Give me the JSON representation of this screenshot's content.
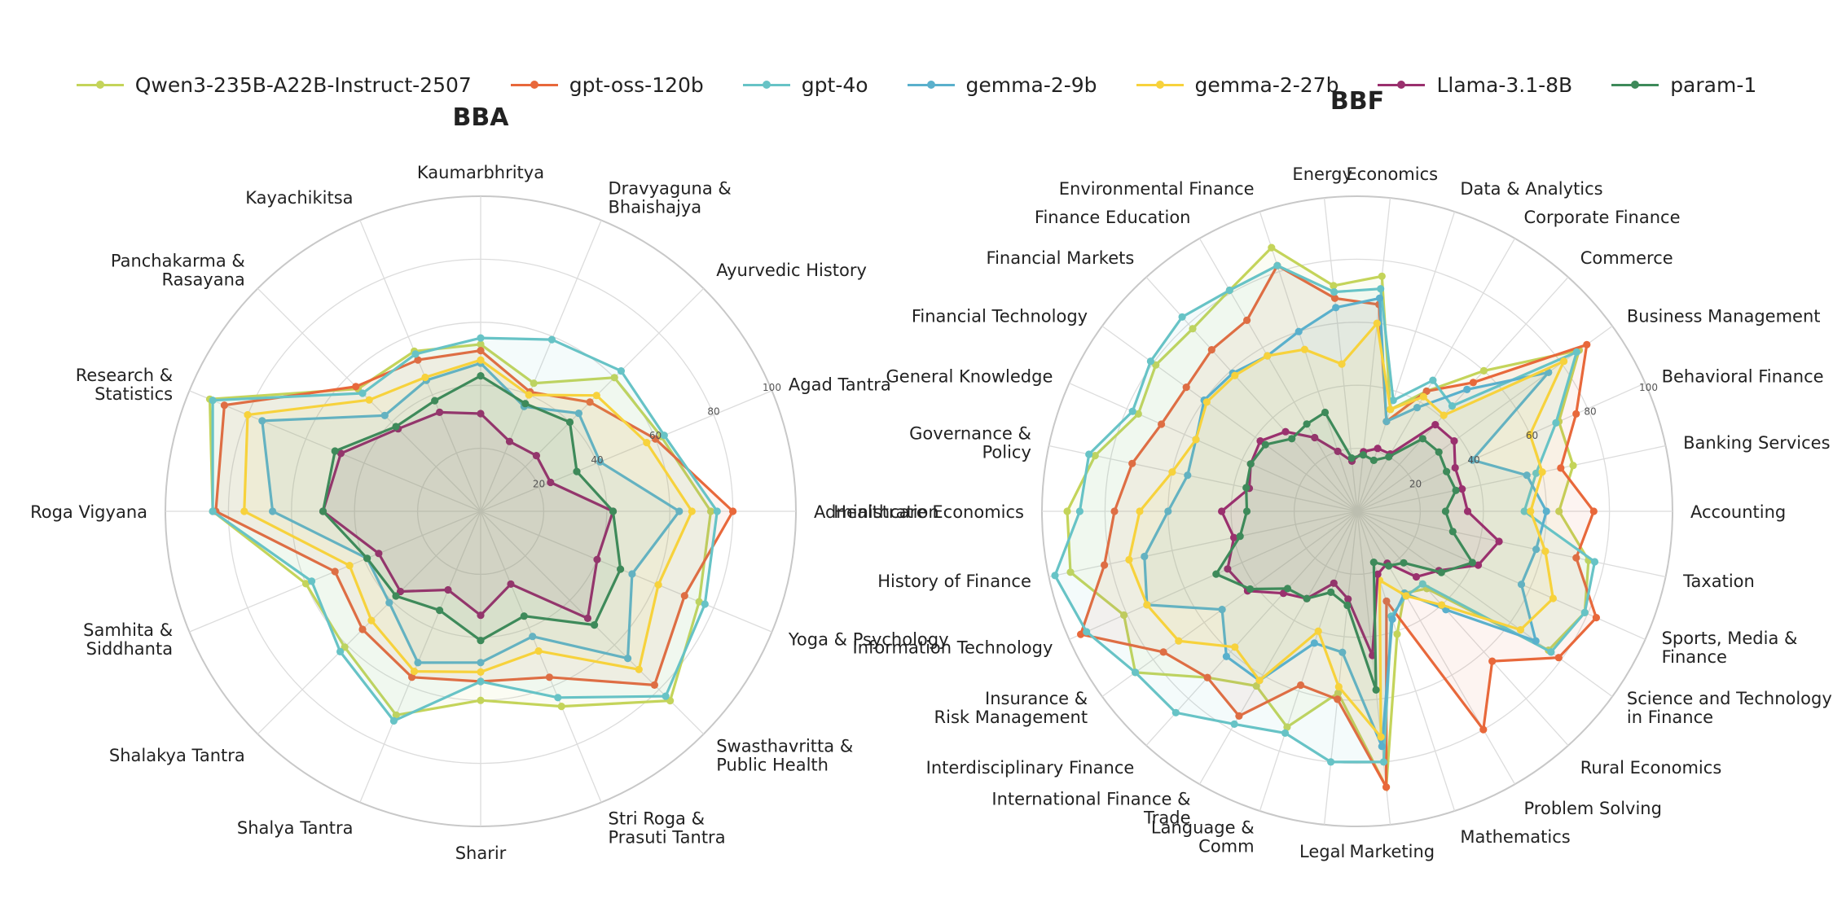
{
  "legend": [
    {
      "name": "Qwen3-235B-A22B-Instruct-2507",
      "color": "#c4d45a"
    },
    {
      "name": "gpt-oss-120b",
      "color": "#e8683b"
    },
    {
      "name": "gpt-4o",
      "color": "#67c3c6"
    },
    {
      "name": "gemma-2-9b",
      "color": "#5ab0cc"
    },
    {
      "name": "gemma-2-27b",
      "color": "#f7d23c"
    },
    {
      "name": "Llama-3.1-8B",
      "color": "#9a306e"
    },
    {
      "name": "param-1",
      "color": "#3e8a5a"
    }
  ],
  "radial_ticks": [
    "20",
    "40",
    "60",
    "80",
    "100"
  ],
  "chart_data": [
    {
      "type": "radar",
      "title": "BBA",
      "rlim": [
        0,
        100
      ],
      "categories": [
        "Administration",
        "Agad Tantra",
        "Ayurvedic History",
        "Dravyaguna & Bhaishajya",
        "Kaumarbhritya",
        "Kayachikitsa",
        "Panchakarma & Rasayana",
        "Research & Statistics",
        "Roga Vigyana",
        "Samhita & Siddhanta",
        "Shalakya Tantra",
        "Shalya Tantra",
        "Sharir",
        "Stri Roga & Prasuti Tantra",
        "Swasthavritta & Public Health",
        "Yoga & Psychology"
      ],
      "series": [
        {
          "name": "Qwen3-235B-A22B-Instruct-2507",
          "values": [
            73,
            62,
            60,
            44,
            53,
            55,
            55,
            93,
            85,
            60,
            61,
            70,
            60,
            67,
            85,
            75
          ]
        },
        {
          "name": "gpt-oss-120b",
          "values": [
            80,
            60,
            49,
            41,
            51,
            52,
            56,
            88,
            84,
            50,
            53,
            57,
            54,
            57,
            78,
            70
          ]
        },
        {
          "name": "gpt-4o",
          "values": [
            75,
            63,
            63,
            59,
            55,
            54,
            53,
            92,
            85,
            58,
            63,
            72,
            54,
            64,
            83,
            77
          ]
        },
        {
          "name": "gemma-2-9b",
          "values": [
            63,
            41,
            44,
            36,
            47,
            45,
            43,
            75,
            66,
            39,
            41,
            52,
            48,
            43,
            66,
            52
          ]
        },
        {
          "name": "gemma-2-27b",
          "values": [
            67,
            57,
            52,
            40,
            48,
            46,
            50,
            80,
            75,
            45,
            49,
            55,
            51,
            48,
            71,
            61
          ]
        },
        {
          "name": "Llama-3.1-8B",
          "values": [
            42,
            24,
            25,
            24,
            31,
            34,
            37,
            48,
            50,
            35,
            36,
            27,
            33,
            25,
            48,
            40
          ]
        },
        {
          "name": "param-1",
          "values": [
            42,
            33,
            40,
            37,
            43,
            38,
            38,
            50,
            50,
            39,
            38,
            34,
            41,
            36,
            51,
            48
          ]
        }
      ]
    },
    {
      "type": "radar",
      "title": "BBF",
      "rlim": [
        0,
        100
      ],
      "categories": [
        "Accounting",
        "Banking Services",
        "Behavioral Finance",
        "Business Management",
        "Commerce",
        "Corporate Finance",
        "Data & Analytics",
        "Economics",
        "Energy",
        "Environmental Finance",
        "Finance Education",
        "Financial Markets",
        "Financial Technology",
        "General Knowledge",
        "Governance & Policy",
        "Healthcare Economics",
        "History of Finance",
        "Information Technology",
        "Insurance & Risk Management",
        "Interdisciplinary Finance",
        "International Finance & Trade",
        "Language & Comm",
        "Legal",
        "Marketing",
        "Mathematics",
        "Problem Solving",
        "Rural Economics",
        "Science and Technology in Finance",
        "Sports, Media & Finance",
        "Taxation"
      ],
      "series": [
        {
          "name": "Qwen3-235B-A22B-Instruct-2507",
          "values": [
            64,
            70,
            70,
            87,
            60,
            44,
            34,
            75,
            72,
            88,
            81,
            78,
            79,
            76,
            85,
            92,
            93,
            81,
            87,
            71,
            64,
            72,
            58,
            88,
            41,
            30,
            33,
            75,
            79,
            75
          ]
        },
        {
          "name": "gpt-oss-120b",
          "values": [
            75,
            66,
            76,
            90,
            55,
            44,
            30,
            66,
            68,
            82,
            70,
            69,
            67,
            68,
            73,
            77,
            82,
            96,
            76,
            71,
            75,
            58,
            60,
            88,
            30,
            80,
            64,
            79,
            83,
            71
          ]
        },
        {
          "name": "gpt-4o",
          "values": [
            53,
            58,
            69,
            86,
            45,
            48,
            37,
            71,
            70,
            82,
            81,
            83,
            81,
            78,
            87,
            88,
            98,
            94,
            87,
            86,
            78,
            74,
            80,
            80,
            35,
            31,
            31,
            76,
            79,
            77
          ]
        },
        {
          "name": "gemma-2-9b",
          "values": [
            60,
            55,
            40,
            75,
            52,
            38,
            30,
            68,
            65,
            60,
            57,
            59,
            60,
            56,
            55,
            60,
            69,
            73,
            53,
            62,
            62,
            44,
            45,
            75,
            36,
            30,
            42,
            70,
            57,
            58
          ]
        },
        {
          "name": "gemma-2-27b",
          "values": [
            55,
            60,
            60,
            81,
            41,
            42,
            34,
            60,
            47,
            54,
            57,
            58,
            59,
            56,
            60,
            69,
            74,
            73,
            70,
            58,
            62,
            40,
            56,
            72,
            23,
            31,
            40,
            64,
            68,
            61
          ]
        },
        {
          "name": "Llama-3.1-8B",
          "values": [
            35,
            34,
            34,
            38,
            37,
            21,
            21,
            19,
            16,
            20,
            27,
            34,
            38,
            37,
            35,
            43,
            40,
            45,
            43,
            35,
            32,
            24,
            28,
            46,
            21,
            19,
            28,
            32,
            42,
            46
          ]
        },
        {
          "name": "param-1",
          "values": [
            28,
            32,
            31,
            32,
            31,
            20,
            17,
            18,
            17,
            33,
            32,
            31,
            36,
            37,
            36,
            35,
            38,
            49,
            42,
            33,
            32,
            27,
            30,
            57,
            17,
            20,
            22,
            33,
            40,
            31
          ]
        }
      ]
    }
  ]
}
